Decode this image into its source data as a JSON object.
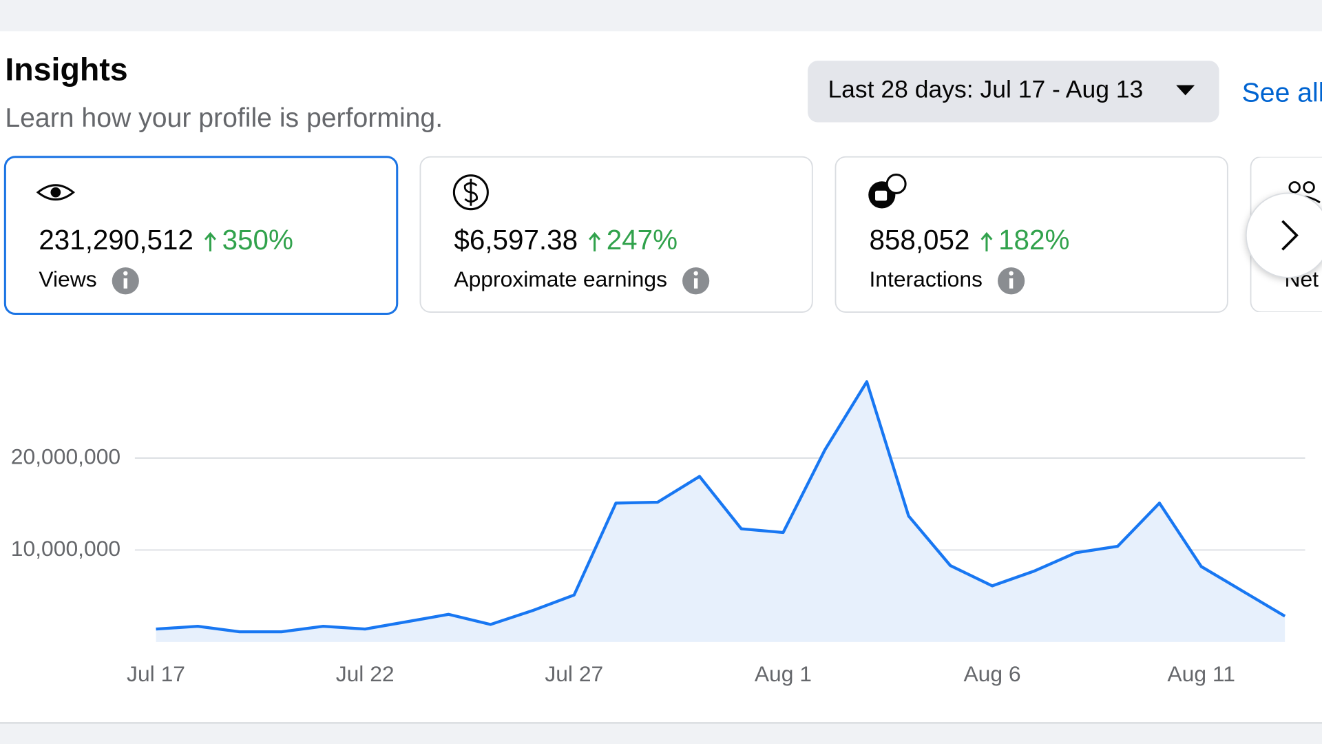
{
  "header": {
    "title": "Insights",
    "subtitle": "Learn how your profile is performing."
  },
  "date_range": "Last 28 days: Jul 17 - Aug 13",
  "see_all": "See all",
  "cards": [
    {
      "value": "231,290,512",
      "change": "350%",
      "label": "Views",
      "selected": true
    },
    {
      "value": "$6,597.38",
      "change": "247%",
      "label": "Approximate earnings"
    },
    {
      "value": "858,052",
      "change": "182%",
      "label": "Interactions"
    },
    {
      "label": "Net"
    }
  ],
  "chart_data": {
    "type": "line",
    "categories": [
      "Jul 17",
      null,
      null,
      null,
      null,
      "Jul 22",
      null,
      null,
      null,
      null,
      "Jul 27",
      null,
      null,
      null,
      null,
      "Aug 1",
      null,
      null,
      null,
      null,
      "Aug 6",
      null,
      null,
      null,
      null,
      "Aug 11",
      null,
      null
    ],
    "values": [
      1400000,
      1700000,
      1100000,
      1100000,
      1700000,
      1400000,
      2200000,
      3000000,
      1900000,
      3400000,
      5100000,
      15100000,
      15200000,
      18000000,
      12300000,
      11900000,
      20900000,
      28300000,
      13700000,
      8300000,
      6100000,
      7700000,
      9700000,
      10400000,
      15100000,
      8200000,
      5500000,
      2800000
    ],
    "color": "#1877f2",
    "area_color": "#e7f0fc",
    "ylim": [
      0,
      30000000
    ],
    "yticks": [
      {
        "value": 10000000,
        "label": "10,000,000"
      },
      {
        "value": 20000000,
        "label": "20,000,000"
      }
    ],
    "grid": true
  }
}
